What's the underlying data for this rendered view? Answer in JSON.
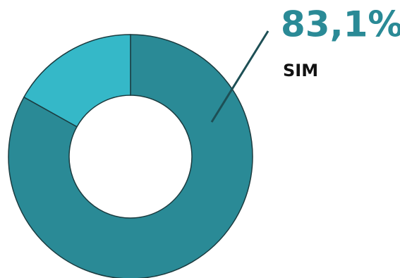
{
  "chart_data": {
    "type": "donut",
    "categories": [
      "SIM",
      null
    ],
    "values": [
      83.1,
      16.9
    ],
    "value_labels": [
      "83,1%",
      null
    ],
    "colors": [
      "#2a8a96",
      "#35b8c8"
    ]
  }
}
